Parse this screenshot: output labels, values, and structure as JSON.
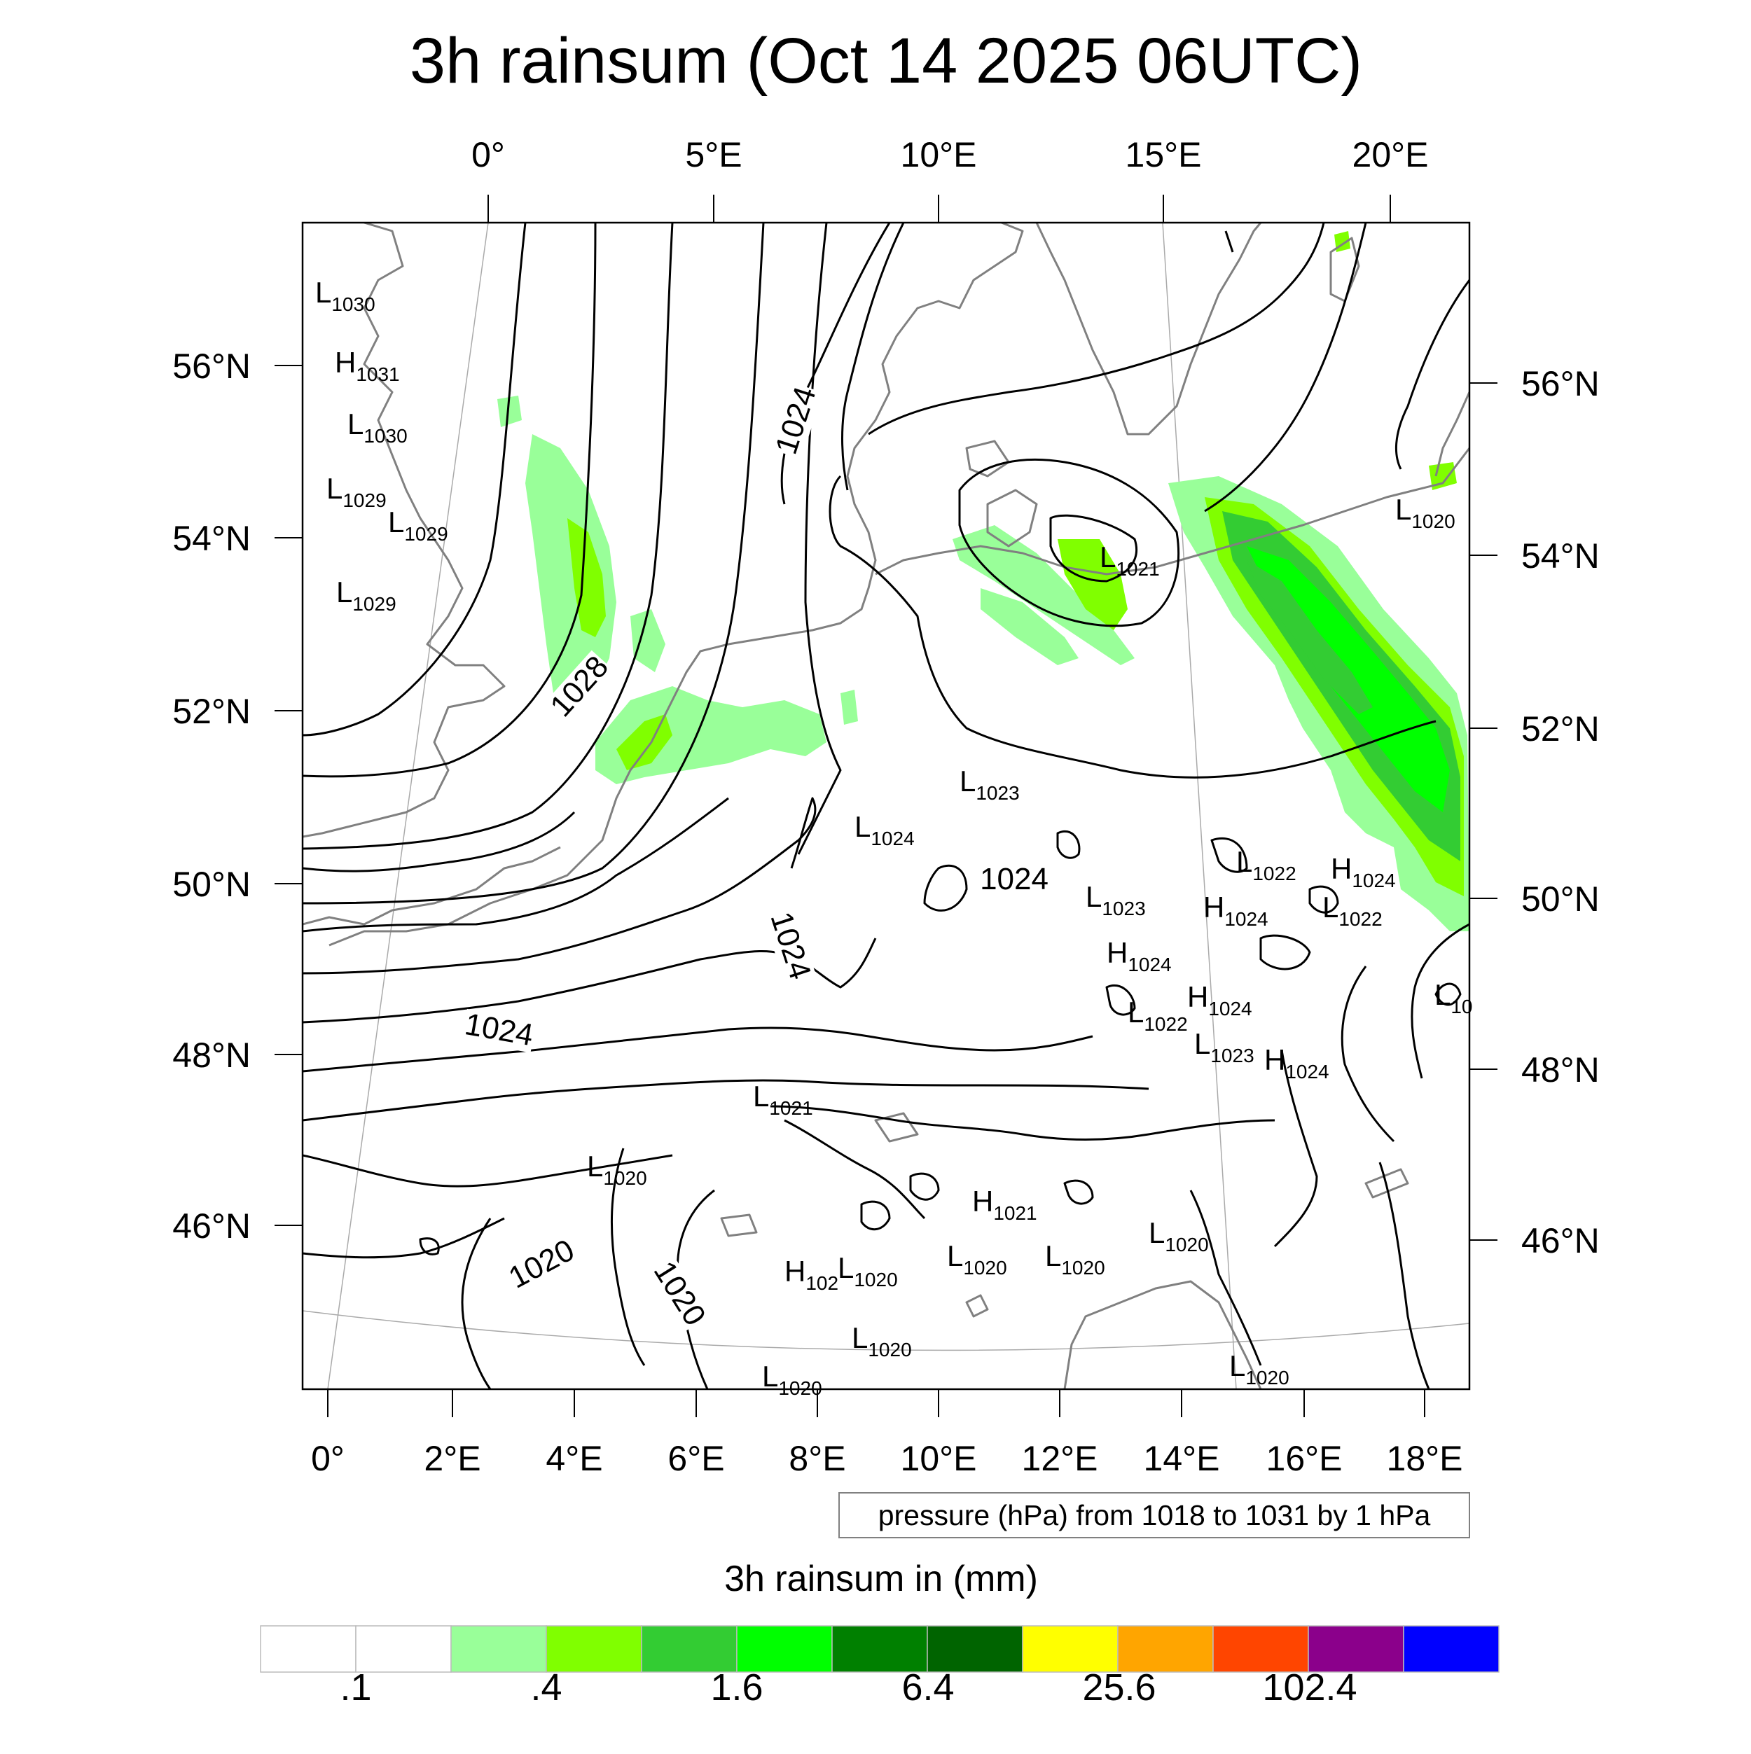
{
  "title": "3h rainsum (Oct 14 2025 06UTC)",
  "top_lon_labels": [
    "0°",
    "5°E",
    "10°E",
    "15°E",
    "20°E"
  ],
  "bottom_lon_labels": [
    "0°",
    "2°E",
    "4°E",
    "6°E",
    "8°E",
    "10°E",
    "12°E",
    "14°E",
    "16°E",
    "18°E"
  ],
  "left_lat_labels": [
    "56°N",
    "54°N",
    "52°N",
    "50°N",
    "48°N",
    "46°N"
  ],
  "right_lat_labels": [
    "56°N",
    "54°N",
    "52°N",
    "50°N",
    "48°N",
    "46°N"
  ],
  "contour_labels": [
    "1024",
    "1028",
    "1024",
    "1024",
    "1024",
    "1020",
    "1020"
  ],
  "pressure_centers": [
    {
      "type": "L",
      "value": "1030"
    },
    {
      "type": "H",
      "value": "1031"
    },
    {
      "type": "L",
      "value": "1030"
    },
    {
      "type": "L",
      "value": "1029"
    },
    {
      "type": "L",
      "value": "1029"
    },
    {
      "type": "L",
      "value": "1029"
    },
    {
      "type": "L",
      "value": "1021"
    },
    {
      "type": "L",
      "value": "1020"
    },
    {
      "type": "L",
      "value": "1023"
    },
    {
      "type": "L",
      "value": "1024"
    },
    {
      "type": "L",
      "value": "1023"
    },
    {
      "type": "L",
      "value": "1022"
    },
    {
      "type": "H",
      "value": "1024"
    },
    {
      "type": "H",
      "value": "1024"
    },
    {
      "type": "L",
      "value": "1022"
    },
    {
      "type": "H",
      "value": "1024"
    },
    {
      "type": "H",
      "value": "1024"
    },
    {
      "type": "L",
      "value": "1022"
    },
    {
      "type": "L",
      "value": "1023"
    },
    {
      "type": "H",
      "value": "1024"
    },
    {
      "type": "L",
      "value": "10"
    },
    {
      "type": "L",
      "value": "1021"
    },
    {
      "type": "L",
      "value": "1020"
    },
    {
      "type": "H",
      "value": "1021"
    },
    {
      "type": "L",
      "value": "1020"
    },
    {
      "type": "L",
      "value": "1020"
    },
    {
      "type": "L",
      "value": "1020"
    },
    {
      "type": "H",
      "value": "102"
    },
    {
      "type": "L",
      "value": "1020"
    },
    {
      "type": "L",
      "value": "1020"
    },
    {
      "type": "L",
      "value": "1020"
    },
    {
      "type": "L",
      "value": "1020"
    }
  ],
  "info_box": "pressure (hPa) from 1018 to 1031 by 1 hPa",
  "colorbar": {
    "title": "3h rainsum in (mm)",
    "tick_labels": [
      ".1",
      ".4",
      "1.6",
      "6.4",
      "25.6",
      "102.4"
    ],
    "colors": [
      "#ffffff",
      "#ffffff",
      "#99ff99",
      "#80ff00",
      "#33cc33",
      "#00ff00",
      "#008000",
      "#006400",
      "#ffff00",
      "#ffa500",
      "#ff4500",
      "#8b008b",
      "#0000ff"
    ]
  },
  "colors": {
    "contour": "#000000",
    "coast": "#808080",
    "graticule": "#aaaaaa",
    "rain_light": "#99ff99",
    "rain_mid": "#80ff00",
    "rain_dark": "#33cc33",
    "rain_bright": "#00ff00"
  }
}
